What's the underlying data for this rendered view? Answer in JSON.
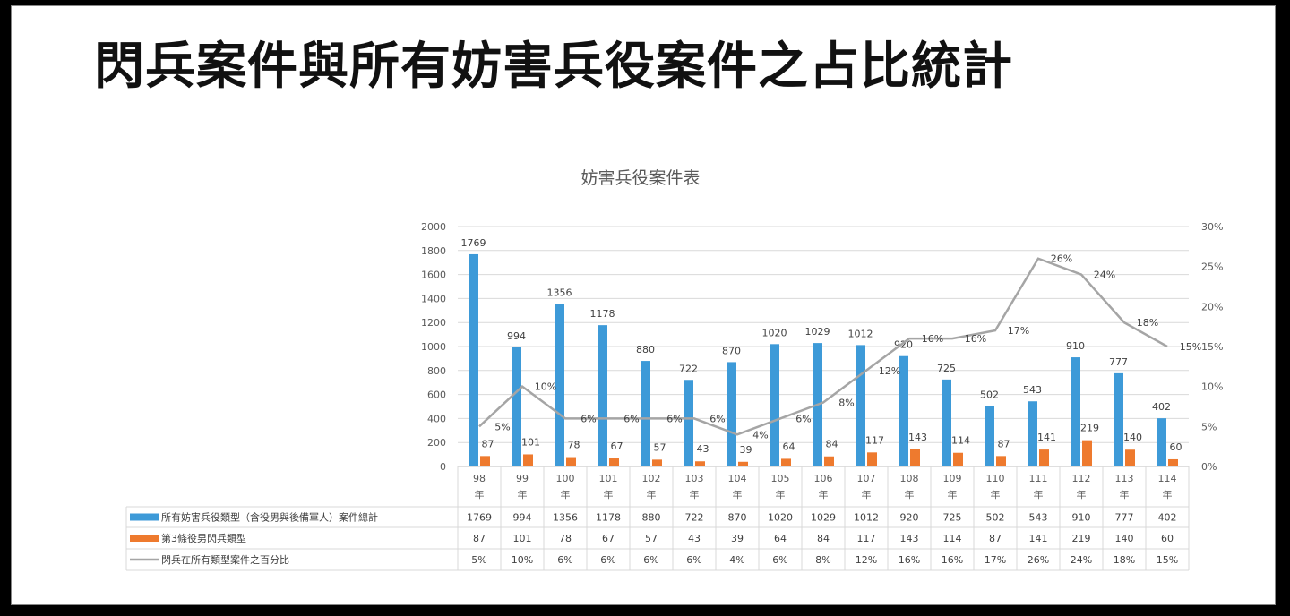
{
  "slide": {
    "title": "閃兵案件與所有妨害兵役案件之占比統計"
  },
  "chart_data": {
    "type": "bar",
    "title": "妨害兵役案件表",
    "categories": [
      "98年",
      "99年",
      "100年",
      "101年",
      "102年",
      "103年",
      "104年",
      "105年",
      "106年",
      "107年",
      "108年",
      "109年",
      "110年",
      "111年",
      "112年",
      "113年",
      "114年"
    ],
    "categories_lines": [
      [
        "98",
        "年"
      ],
      [
        "99",
        "年"
      ],
      [
        "100",
        "年"
      ],
      [
        "101",
        "年"
      ],
      [
        "102",
        "年"
      ],
      [
        "103",
        "年"
      ],
      [
        "104",
        "年"
      ],
      [
        "105",
        "年"
      ],
      [
        "106",
        "年"
      ],
      [
        "107",
        "年"
      ],
      [
        "108",
        "年"
      ],
      [
        "109",
        "年"
      ],
      [
        "110",
        "年"
      ],
      [
        "111",
        "年"
      ],
      [
        "112",
        "年"
      ],
      [
        "113",
        "年"
      ],
      [
        "114",
        "年"
      ]
    ],
    "series": [
      {
        "name": "所有妨害兵役類型（含役男與後備軍人）案件總計",
        "type": "bar",
        "axis": "left",
        "color": "#3d9ad8",
        "values": [
          1769,
          994,
          1356,
          1178,
          880,
          722,
          870,
          1020,
          1029,
          1012,
          920,
          725,
          502,
          543,
          910,
          777,
          402
        ]
      },
      {
        "name": "第3條役男閃兵類型",
        "type": "bar",
        "axis": "left",
        "color": "#ee7a2e",
        "values": [
          87,
          101,
          78,
          67,
          57,
          43,
          39,
          64,
          84,
          117,
          143,
          114,
          87,
          141,
          219,
          140,
          60
        ]
      },
      {
        "name": "閃兵在所有類型案件之百分比",
        "type": "line",
        "axis": "right",
        "color": "#a5a5a5",
        "values": [
          5,
          10,
          6,
          6,
          6,
          6,
          4,
          6,
          8,
          12,
          16,
          16,
          17,
          26,
          24,
          18,
          15
        ],
        "labels": [
          "5%",
          "10%",
          "6%",
          "6%",
          "6%",
          "6%",
          "4%",
          "6%",
          "8%",
          "12%",
          "16%",
          "16%",
          "17%",
          "26%",
          "24%",
          "18%",
          "15%"
        ]
      }
    ],
    "y_left": {
      "min": 0,
      "max": 2000,
      "step": 200,
      "ticks": [
        "0",
        "200",
        "400",
        "600",
        "800",
        "1000",
        "1200",
        "1400",
        "1600",
        "1800",
        "2000"
      ]
    },
    "y_right": {
      "min": 0,
      "max": 30,
      "step": 5,
      "ticks": [
        "0%",
        "5%",
        "10%",
        "15%",
        "20%",
        "25%",
        "30%"
      ]
    },
    "grid": true,
    "legend": "data-table-below"
  }
}
